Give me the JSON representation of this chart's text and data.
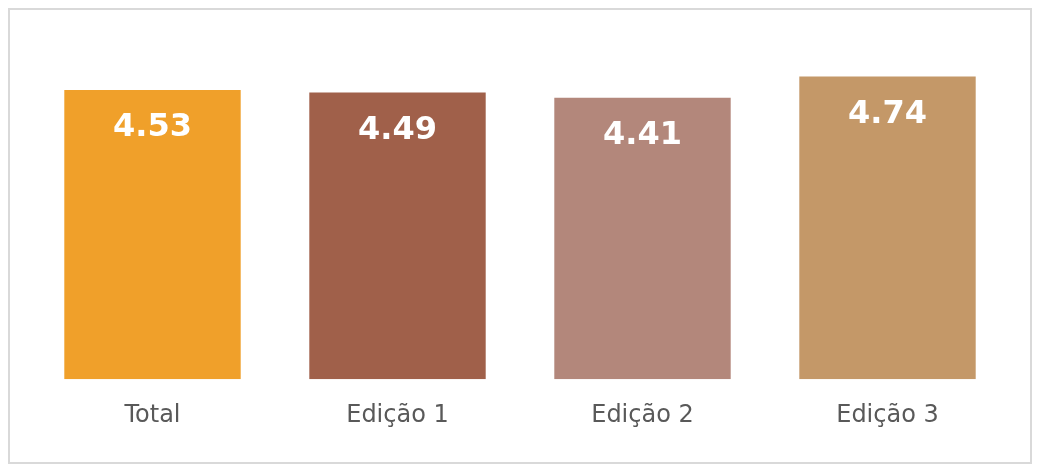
{
  "chart_data": {
    "type": "bar",
    "categories": [
      "Total",
      "Edição 1",
      "Edição 2",
      "Edição 3"
    ],
    "values": [
      4.53,
      4.49,
      4.41,
      4.74
    ],
    "colors": [
      "#f0a02a",
      "#a0604a",
      "#b3877b",
      "#c49868"
    ],
    "data_labels": true,
    "grid": false,
    "legend": false
  }
}
